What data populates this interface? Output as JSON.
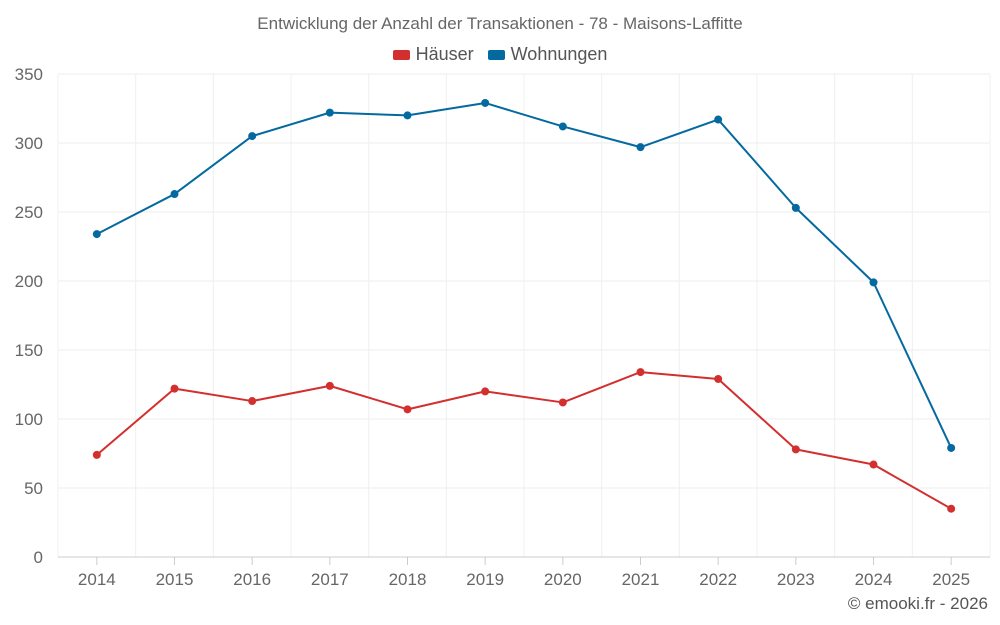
{
  "chart_data": {
    "type": "line",
    "title": "Entwicklung der Anzahl der Transaktionen - 78 - Maisons-Laffitte",
    "xlabel": "",
    "ylabel": "",
    "categories": [
      "2014",
      "2015",
      "2016",
      "2017",
      "2018",
      "2019",
      "2020",
      "2021",
      "2022",
      "2023",
      "2024",
      "2025"
    ],
    "ylim": [
      0,
      350
    ],
    "yticks": [
      0,
      50,
      100,
      150,
      200,
      250,
      300,
      350
    ],
    "grid": true,
    "legend_position": "top-center",
    "series": [
      {
        "name": "Häuser",
        "color": "#d32f2f",
        "values": [
          74,
          122,
          113,
          124,
          107,
          120,
          112,
          134,
          129,
          78,
          67,
          35
        ]
      },
      {
        "name": "Wohnungen",
        "color": "#04699f",
        "values": [
          234,
          263,
          305,
          322,
          320,
          329,
          312,
          297,
          317,
          253,
          199,
          79
        ]
      }
    ]
  },
  "footer": {
    "credit": "© emooki.fr - 2026"
  }
}
